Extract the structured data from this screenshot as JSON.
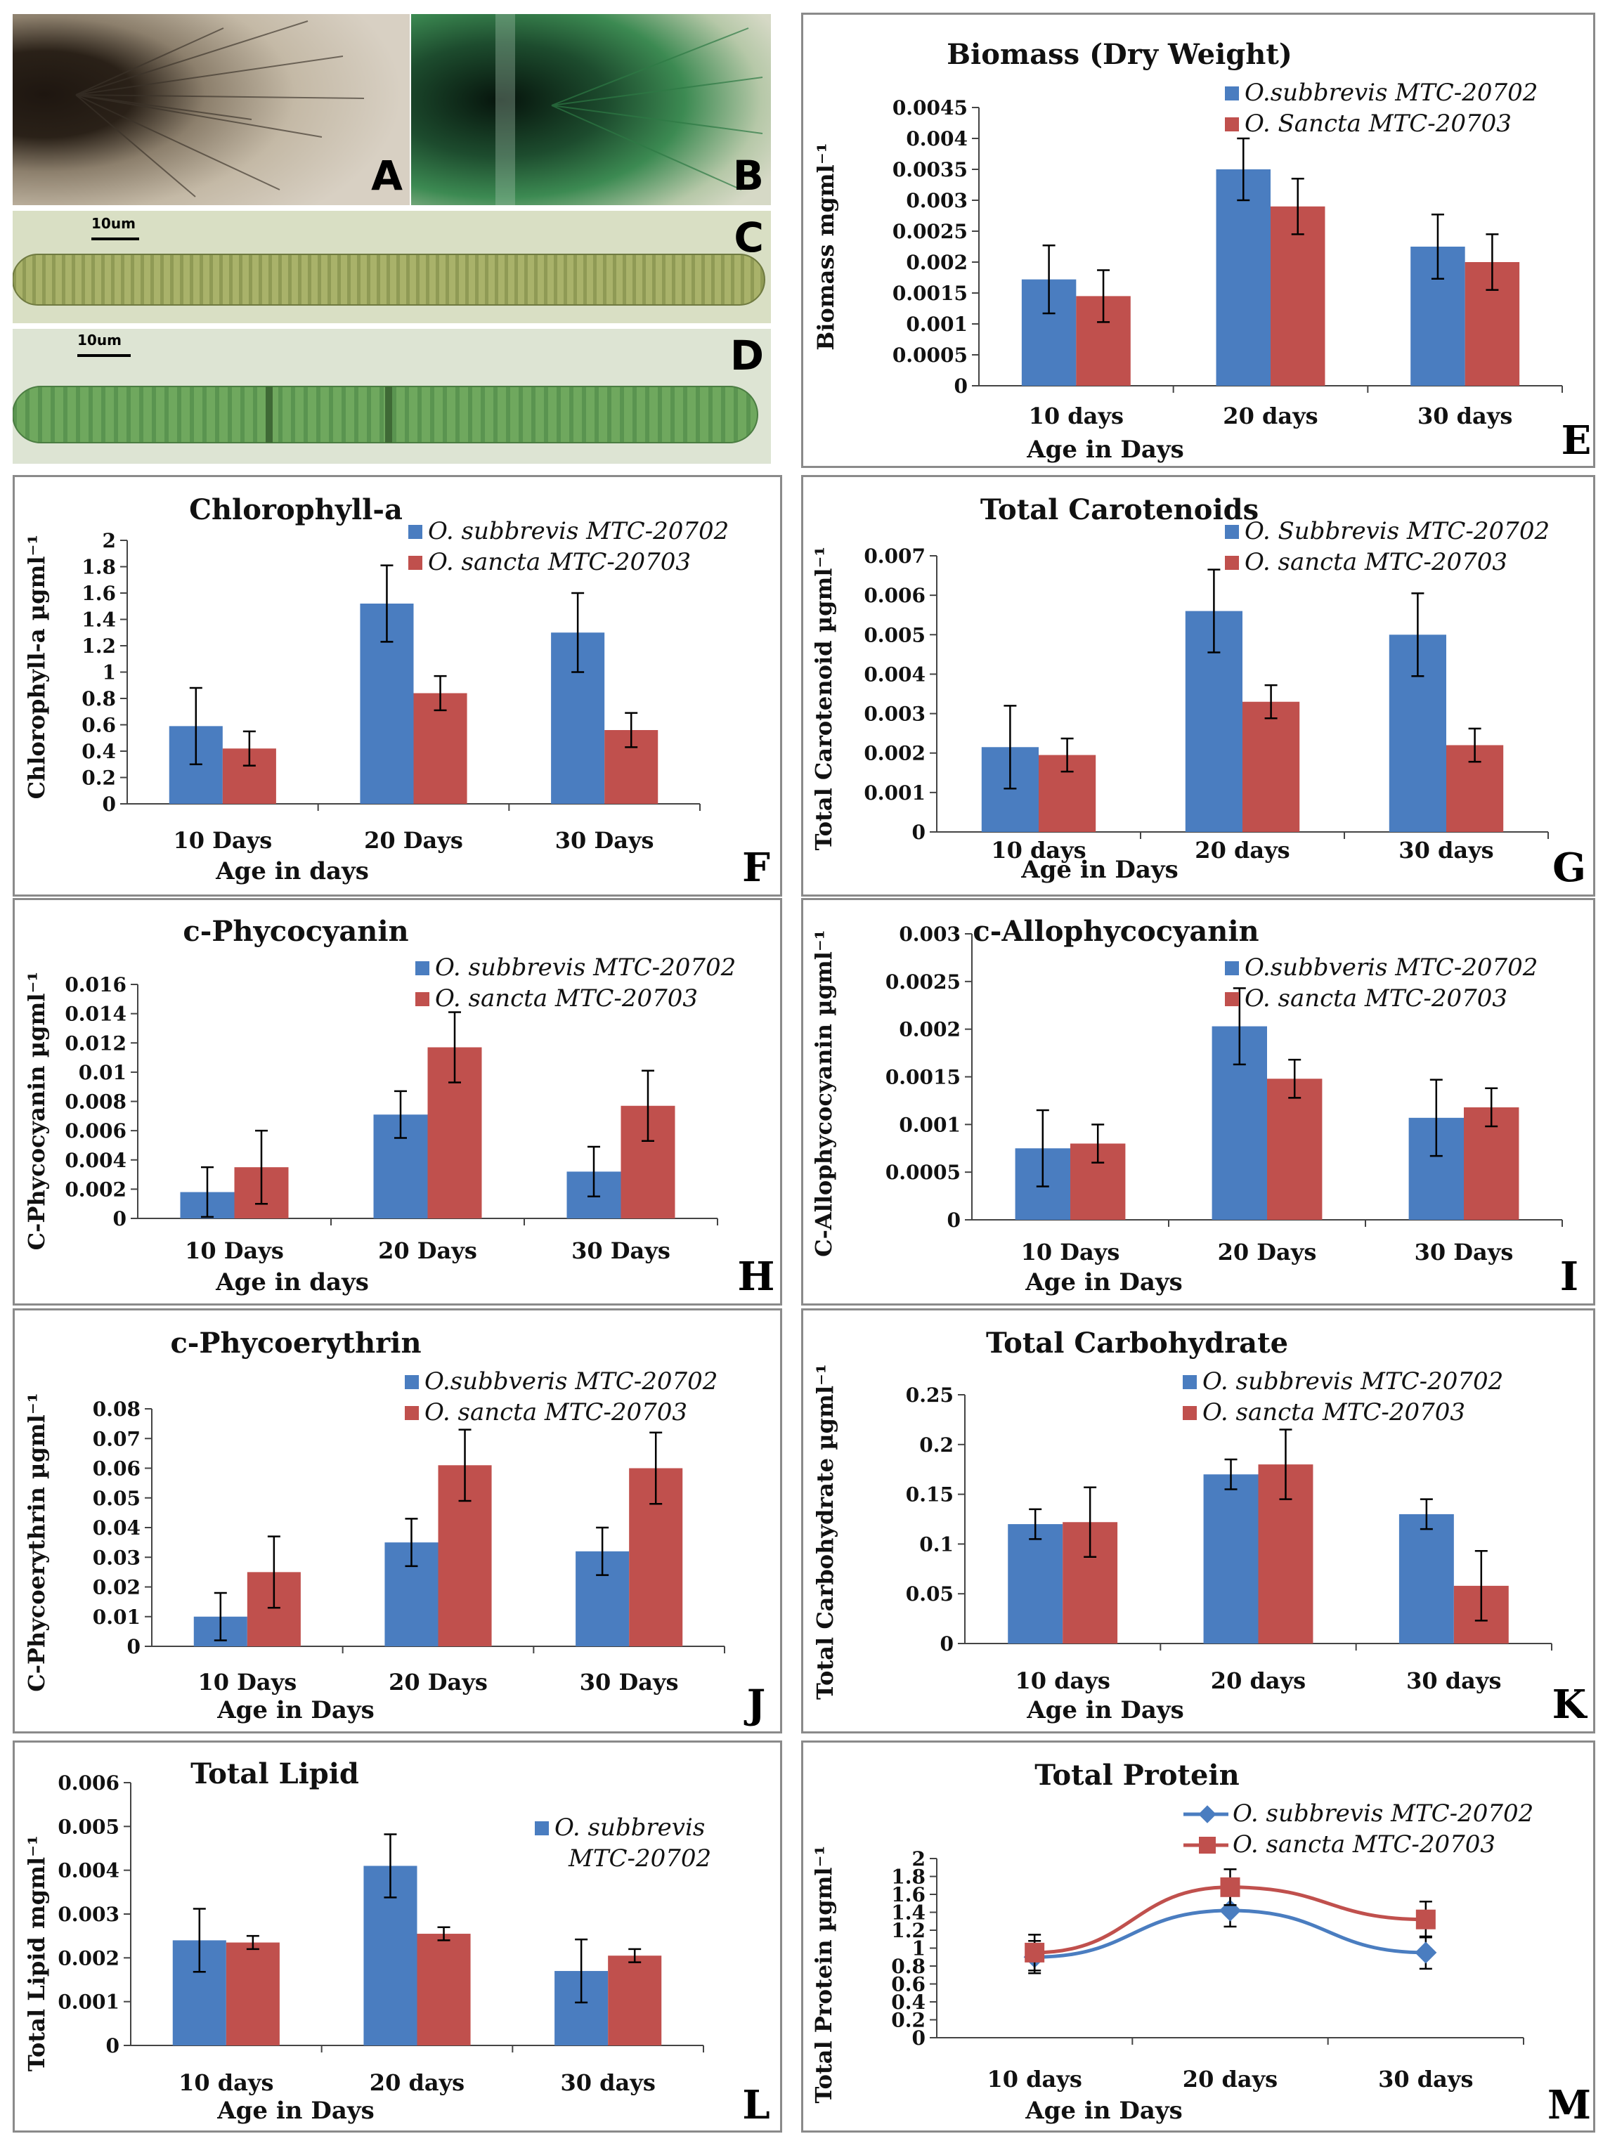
{
  "photos": [
    {
      "letter": "A"
    },
    {
      "letter": "B"
    },
    {
      "letter": "C",
      "scale": "10um"
    },
    {
      "letter": "D",
      "scale": "10um"
    }
  ],
  "colors": {
    "blue": "#4a7dc0",
    "red": "#c0504d",
    "axis": "#444444"
  },
  "chart_data": [
    {
      "letter": "E",
      "type": "bar",
      "title": "Biomass (Dry Weight)",
      "ylabel": "Biomass mgml⁻¹",
      "xlabel": "Age in Days",
      "categories": [
        "10 days",
        "20 days",
        "30 days"
      ],
      "ylim": [
        0,
        0.0045
      ],
      "yticks": [
        "0",
        "0.0005",
        "0.001",
        "0.0015",
        "0.002",
        "0.0025",
        "0.003",
        "0.0035",
        "0.004",
        "0.0045"
      ],
      "series": [
        {
          "name": "O.subbrevis MTC-20702",
          "values": [
            0.00172,
            0.0035,
            0.00225
          ],
          "err": [
            0.00055,
            0.0005,
            0.00052
          ]
        },
        {
          "name": "O. Sancta MTC-20703",
          "values": [
            0.00145,
            0.0029,
            0.002
          ],
          "err": [
            0.00042,
            0.00045,
            0.00045
          ]
        }
      ]
    },
    {
      "letter": "F",
      "type": "bar",
      "title": "Chlorophyll-a",
      "ylabel": "Chlorophyll-a µgml⁻¹",
      "xlabel": "Age in days",
      "categories": [
        "10 Days",
        "20 Days",
        "30 Days"
      ],
      "ylim": [
        0,
        2
      ],
      "yticks": [
        "0",
        "0.2",
        "0.4",
        "0.6",
        "0.8",
        "1",
        "1.2",
        "1.4",
        "1.6",
        "1.8",
        "2"
      ],
      "series": [
        {
          "name": "O. subbrevis MTC-20702",
          "values": [
            0.59,
            1.52,
            1.3
          ],
          "err": [
            0.29,
            0.29,
            0.3
          ]
        },
        {
          "name": "O. sancta MTC-20703",
          "values": [
            0.42,
            0.84,
            0.56
          ],
          "err": [
            0.13,
            0.13,
            0.13
          ]
        }
      ]
    },
    {
      "letter": "G",
      "type": "bar",
      "title": "Total Carotenoids",
      "ylabel": "Total Carotenoid µgml⁻¹",
      "xlabel": "Age in Days",
      "categories": [
        "10 days",
        "20 days",
        "30 days"
      ],
      "ylim": [
        0,
        0.007
      ],
      "yticks": [
        "0",
        "0.001",
        "0.002",
        "0.003",
        "0.004",
        "0.005",
        "0.006",
        "0.007"
      ],
      "series": [
        {
          "name": "O. Subbrevis MTC-20702",
          "values": [
            0.00215,
            0.0056,
            0.005
          ],
          "err": [
            0.00105,
            0.00105,
            0.00105
          ]
        },
        {
          "name": "O. sancta  MTC-20703",
          "values": [
            0.00195,
            0.0033,
            0.0022
          ],
          "err": [
            0.00042,
            0.00042,
            0.00042
          ]
        }
      ]
    },
    {
      "letter": "H",
      "type": "bar",
      "title": "c-Phycocyanin",
      "ylabel": "C-Phycocyanin µgml⁻¹",
      "xlabel": "Age in days",
      "categories": [
        "10 Days",
        "20 Days",
        "30 Days"
      ],
      "ylim": [
        0,
        0.016
      ],
      "yticks": [
        "0",
        "0.002",
        "0.004",
        "0.006",
        "0.008",
        "0.01",
        "0.012",
        "0.014",
        "0.016"
      ],
      "series": [
        {
          "name": "O. subbrevis MTC-20702",
          "values": [
            0.0018,
            0.0071,
            0.0032
          ],
          "err": [
            0.0017,
            0.0016,
            0.0017
          ]
        },
        {
          "name": "O. sancta  MTC-20703",
          "values": [
            0.0035,
            0.0117,
            0.0077
          ],
          "err": [
            0.0025,
            0.0024,
            0.0024
          ]
        }
      ]
    },
    {
      "letter": "I",
      "type": "bar",
      "title": "c-Allophycocyanin",
      "ylabel": "C-Allophycocyanin µgml⁻¹",
      "xlabel": "Age in Days",
      "categories": [
        "10 Days",
        "20 Days",
        "30 Days"
      ],
      "ylim": [
        0,
        0.003
      ],
      "yticks": [
        "0",
        "0.0005",
        "0.001",
        "0.0015",
        "0.002",
        "0.0025",
        "0.003"
      ],
      "series": [
        {
          "name": "O.subbveris MTC-20702",
          "values": [
            0.00075,
            0.00203,
            0.00107
          ],
          "err": [
            0.0004,
            0.0004,
            0.0004
          ]
        },
        {
          "name": "O. sancta MTC-20703",
          "values": [
            0.0008,
            0.00148,
            0.00118
          ],
          "err": [
            0.0002,
            0.0002,
            0.0002
          ]
        }
      ]
    },
    {
      "letter": "J",
      "type": "bar",
      "title": "c-Phycoerythrin",
      "ylabel": "C-Phycoerythrin µgml⁻¹",
      "xlabel": "Age in Days",
      "categories": [
        "10 Days",
        "20 Days",
        "30 Days"
      ],
      "ylim": [
        0,
        0.08
      ],
      "yticks": [
        "0",
        "0.01",
        "0.02",
        "0.03",
        "0.04",
        "0.05",
        "0.06",
        "0.07",
        "0.08"
      ],
      "series": [
        {
          "name": "O.subbveris MTC-20702",
          "values": [
            0.01,
            0.035,
            0.032
          ],
          "err": [
            0.008,
            0.008,
            0.008
          ]
        },
        {
          "name": "O. sancta MTC-20703",
          "values": [
            0.025,
            0.061,
            0.06
          ],
          "err": [
            0.012,
            0.012,
            0.012
          ]
        }
      ]
    },
    {
      "letter": "K",
      "type": "bar",
      "title": "Total Carbohydrate",
      "ylabel": "Total Carbohydrate µgml⁻¹",
      "xlabel": "Age in Days",
      "categories": [
        "10 days",
        "20 days",
        "30 days"
      ],
      "ylim": [
        0,
        0.25
      ],
      "yticks": [
        "0",
        "0.05",
        "0.1",
        "0.15",
        "0.2",
        "0.25"
      ],
      "series": [
        {
          "name": "O. subbrevis MTC-20702",
          "values": [
            0.12,
            0.17,
            0.13
          ],
          "err": [
            0.015,
            0.015,
            0.015
          ]
        },
        {
          "name": "O. sancta MTC-20703",
          "values": [
            0.122,
            0.18,
            0.058
          ],
          "err": [
            0.035,
            0.035,
            0.035
          ]
        }
      ]
    },
    {
      "letter": "L",
      "type": "bar",
      "title": "Total Lipid",
      "ylabel": "Total Lipid mgml⁻¹",
      "xlabel": "Age in Days",
      "categories": [
        "10 days",
        "20 days",
        "30 days"
      ],
      "ylim": [
        0,
        0.006
      ],
      "yticks": [
        "0",
        "0.001",
        "0.002",
        "0.003",
        "0.004",
        "0.005",
        "0.006"
      ],
      "series": [
        {
          "name": "O. subbrevis MTC-20702",
          "values": [
            0.0024,
            0.0041,
            0.0017
          ],
          "err": [
            0.00072,
            0.00072,
            0.00072
          ]
        },
        {
          "name": "",
          "values": [
            0.00235,
            0.00255,
            0.00205
          ],
          "err": [
            0.00015,
            0.00015,
            0.00015
          ]
        }
      ],
      "legend_lines": [
        "O. subbrevis",
        "MTC-20702"
      ]
    },
    {
      "letter": "M",
      "type": "line",
      "title": "Total Protein",
      "ylabel": "Total Protein µgml⁻¹",
      "xlabel": "Age in Days",
      "categories": [
        "10 days",
        "20 days",
        "30 days"
      ],
      "ylim": [
        0,
        2
      ],
      "yticks": [
        "0",
        "0.2",
        "0.4",
        "0.6",
        "0.8",
        "1",
        "1.2",
        "1.4",
        "1.6",
        "1.8",
        "2"
      ],
      "series": [
        {
          "name": "O. subbrevis MTC-20702",
          "values": [
            0.9,
            1.42,
            0.95
          ],
          "err": [
            0.18,
            0.18,
            0.18
          ]
        },
        {
          "name": "O. sancta MTC-20703",
          "values": [
            0.95,
            1.68,
            1.32
          ],
          "err": [
            0.2,
            0.2,
            0.2
          ]
        }
      ]
    }
  ]
}
